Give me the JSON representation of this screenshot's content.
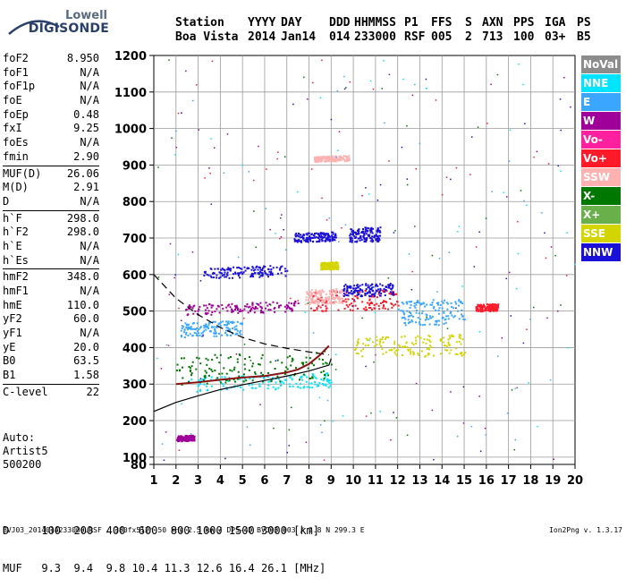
{
  "logo": {
    "top": "Lowell",
    "main": "DIGISONDE"
  },
  "header": {
    "labels": [
      "Station",
      "YYYY",
      "DAY",
      "DDD",
      "HHMMSS",
      "P1",
      "FFS",
      "S",
      "AXN",
      "PPS",
      "IGA",
      "PS"
    ],
    "values": [
      "Boa Vista",
      "2014",
      "Jan14",
      "014",
      "233000",
      "RSF",
      "005",
      "2",
      "713",
      "100",
      "03+",
      "B5"
    ]
  },
  "params": [
    [
      {
        "k": "foF2",
        "v": "8.950"
      },
      {
        "k": "foF1",
        "v": "N/A"
      },
      {
        "k": "foF1p",
        "v": "N/A"
      },
      {
        "k": "foE",
        "v": "N/A"
      },
      {
        "k": "foEp",
        "v": "0.48"
      },
      {
        "k": "fxI",
        "v": "9.25"
      },
      {
        "k": "foEs",
        "v": "N/A"
      },
      {
        "k": "fmin",
        "v": "2.90"
      }
    ],
    [
      {
        "k": "MUF(D)",
        "v": "26.06"
      },
      {
        "k": "M(D)",
        "v": "2.91"
      },
      {
        "k": "D",
        "v": "N/A"
      }
    ],
    [
      {
        "k": "h`F",
        "v": "298.0"
      },
      {
        "k": "h`F2",
        "v": "298.0"
      },
      {
        "k": "h`E",
        "v": "N/A"
      },
      {
        "k": "h`Es",
        "v": "N/A"
      }
    ],
    [
      {
        "k": "hmF2",
        "v": "348.0"
      },
      {
        "k": "hmF1",
        "v": "N/A"
      },
      {
        "k": "hmE",
        "v": "110.0"
      },
      {
        "k": "yF2",
        "v": "60.0"
      },
      {
        "k": "yF1",
        "v": "N/A"
      },
      {
        "k": "yE",
        "v": "20.0"
      },
      {
        "k": "B0",
        "v": "63.5"
      },
      {
        "k": "B1",
        "v": "1.58"
      }
    ],
    [
      {
        "k": "C-level",
        "v": "22"
      }
    ]
  ],
  "auto": {
    "line1": "Auto:",
    "line2": "Artist5",
    "line3": "500200"
  },
  "legend": [
    {
      "label": "NoVal",
      "color": "#8c8c8c"
    },
    {
      "label": "NNE",
      "color": "#00e5ff"
    },
    {
      "label": "E",
      "color": "#3aa6ff"
    },
    {
      "label": "W",
      "color": "#a0009a"
    },
    {
      "label": "Vo-",
      "color": "#ff20a0"
    },
    {
      "label": "Vo+",
      "color": "#ff1a2a"
    },
    {
      "label": "SSW",
      "color": "#ffb0b0"
    },
    {
      "label": "X-",
      "color": "#007800"
    },
    {
      "label": "X+",
      "color": "#6ab04a"
    },
    {
      "label": "SSE",
      "color": "#d4d400"
    },
    {
      "label": "NNW",
      "color": "#1a10d8"
    }
  ],
  "bottom": {
    "d_row": "D     100  200  400  600  800 1000 1500 3000 [km]",
    "muf_row": "MUF   9.3  9.4  9.8 10.4 11.3 12.6 16.4 26.1 [MHz]",
    "footer_left": "BVJ03_2014014233000.RSF / 380fx512h 50 kHz 2.5 km / DPS-4D BVJ03 003 / 2.8 N 299.3 E",
    "footer_right": "Ion2Png v. 1.3.17"
  },
  "chart_data": {
    "type": "scatter",
    "xlim": [
      1,
      20
    ],
    "ylim": [
      80,
      1200
    ],
    "x_ticks": [
      "1",
      "2",
      "3",
      "4",
      "5",
      "6",
      "7",
      "8",
      "9",
      "10",
      "11",
      "12",
      "13",
      "14",
      "15",
      "16",
      "17",
      "18",
      "19",
      "20"
    ],
    "y_ticks": [
      "80",
      "100",
      "200",
      "300",
      "400",
      "500",
      "600",
      "700",
      "800",
      "900",
      "1000",
      "1100",
      "1200"
    ],
    "grid": true,
    "profile_curve": {
      "x": [
        1.0,
        2.0,
        3.0,
        4.0,
        5.0,
        6.0,
        7.0,
        8.0,
        8.9,
        9.0
      ],
      "y": [
        225,
        250,
        268,
        285,
        298,
        310,
        322,
        336,
        352,
        370
      ]
    },
    "extraordinary_dashed": {
      "x": [
        1.0,
        2.0,
        3.0,
        4.0,
        5.0,
        6.0,
        7.0,
        8.0,
        8.9
      ],
      "y": [
        600,
        535,
        490,
        455,
        428,
        410,
        398,
        388,
        380
      ]
    },
    "trace_curve": {
      "x": [
        2.0,
        3.0,
        4.0,
        5.0,
        6.0,
        7.0,
        7.5,
        8.0,
        8.5,
        8.9
      ],
      "y": [
        300,
        305,
        312,
        318,
        322,
        332,
        340,
        355,
        380,
        405
      ]
    },
    "echo_clusters": [
      {
        "color": "NNW",
        "x": [
          3.2,
          7.0
        ],
        "y": [
          590,
          620
        ]
      },
      {
        "color": "NNW",
        "x": [
          7.3,
          9.2
        ],
        "y": [
          690,
          715
        ]
      },
      {
        "color": "NNW",
        "x": [
          9.8,
          11.2
        ],
        "y": [
          690,
          730
        ]
      },
      {
        "color": "W",
        "x": [
          2.4,
          7.5
        ],
        "y": [
          490,
          520
        ]
      },
      {
        "color": "Vo+",
        "x": [
          8.0,
          12.0
        ],
        "y": [
          500,
          555
        ]
      },
      {
        "color": "SSW",
        "x": [
          7.8,
          9.5
        ],
        "y": [
          520,
          560
        ]
      },
      {
        "color": "NNW",
        "x": [
          9.5,
          11.8
        ],
        "y": [
          540,
          575
        ]
      },
      {
        "color": "E",
        "x": [
          2.2,
          5.0
        ],
        "y": [
          430,
          470
        ]
      },
      {
        "color": "NNE",
        "x": [
          2.5,
          9.0
        ],
        "y": [
          280,
          320
        ]
      },
      {
        "color": "SSE",
        "x": [
          10.0,
          15.0
        ],
        "y": [
          370,
          430
        ]
      },
      {
        "color": "SSE",
        "x": [
          8.5,
          9.3
        ],
        "y": [
          615,
          635
        ]
      },
      {
        "color": "E",
        "x": [
          12.0,
          15.0
        ],
        "y": [
          460,
          530
        ]
      },
      {
        "color": "W",
        "x": [
          2.0,
          2.8
        ],
        "y": [
          145,
          160
        ]
      },
      {
        "color": "SSW",
        "x": [
          8.2,
          9.8
        ],
        "y": [
          910,
          925
        ]
      },
      {
        "color": "Vo+",
        "x": [
          15.5,
          16.5
        ],
        "y": [
          500,
          520
        ]
      },
      {
        "color": "X-",
        "x": [
          2.0,
          9.0
        ],
        "y": [
          300,
          380
        ]
      }
    ]
  }
}
